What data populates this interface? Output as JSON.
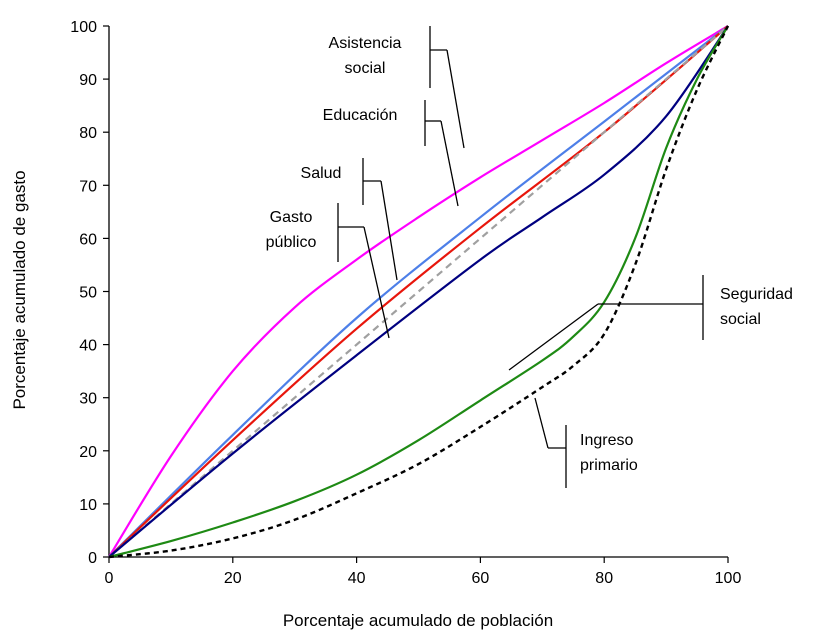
{
  "chart_data": {
    "type": "line",
    "title": "",
    "xlabel": "Porcentaje acumulado de población",
    "ylabel": "Porcentaje acumulado de gasto",
    "xlim": [
      0,
      100
    ],
    "ylim": [
      0,
      100
    ],
    "xticks": [
      0,
      20,
      40,
      60,
      80,
      100
    ],
    "yticks": [
      0,
      10,
      20,
      30,
      40,
      50,
      60,
      70,
      80,
      90,
      100
    ],
    "grid": false,
    "legend": "none",
    "series": [
      {
        "name": "Asistencia social",
        "color": "#ff00ff",
        "dash": "solid",
        "x": [
          0,
          10,
          20,
          30,
          40,
          50,
          60,
          70,
          80,
          90,
          100
        ],
        "y": [
          0,
          19,
          35,
          47,
          56,
          64,
          71.5,
          78.5,
          85.5,
          93,
          100
        ]
      },
      {
        "name": "Educación",
        "color": "#4d7fe8",
        "dash": "solid",
        "x": [
          0,
          20,
          40,
          60,
          80,
          100
        ],
        "y": [
          0,
          23,
          45,
          64,
          82,
          100
        ]
      },
      {
        "name": "Salud",
        "color": "#e8160c",
        "dash": "solid",
        "x": [
          0,
          20,
          40,
          60,
          80,
          100
        ],
        "y": [
          0,
          22,
          43,
          62,
          80,
          100
        ]
      },
      {
        "name": "",
        "color": "#a0a0a0",
        "dash": "dashed",
        "x": [
          0,
          100
        ],
        "y": [
          0,
          100
        ]
      },
      {
        "name": "Gasto público",
        "color": "#000080",
        "dash": "solid",
        "x": [
          0,
          20,
          40,
          60,
          70,
          80,
          90,
          100
        ],
        "y": [
          0,
          19.5,
          38,
          56,
          64,
          72,
          83,
          100
        ]
      },
      {
        "name": "Seguridad social",
        "color": "#1e8a14",
        "dash": "solid",
        "x": [
          0,
          10,
          20,
          30,
          40,
          50,
          60,
          70,
          75,
          80,
          85,
          90,
          95,
          100
        ],
        "y": [
          0,
          3,
          6.5,
          10.5,
          15.5,
          22,
          29.5,
          37,
          41.5,
          48,
          60,
          77,
          90,
          100
        ]
      },
      {
        "name": "Ingreso primario",
        "color": "#000000",
        "dash": "dotted",
        "x": [
          0,
          10,
          20,
          30,
          40,
          50,
          60,
          70,
          75,
          80,
          85,
          90,
          95,
          100
        ],
        "y": [
          0,
          1.2,
          3.5,
          7,
          12,
          17.5,
          24.5,
          32,
          36,
          42,
          55,
          73,
          88,
          100
        ]
      }
    ],
    "annotations": [
      {
        "id": "asistencia",
        "lines": [
          "Asistencia",
          "social"
        ]
      },
      {
        "id": "educacion",
        "lines": [
          "Educación"
        ]
      },
      {
        "id": "salud",
        "lines": [
          "Salud"
        ]
      },
      {
        "id": "gasto",
        "lines": [
          "Gasto",
          "público"
        ]
      },
      {
        "id": "seguridad",
        "lines": [
          "Seguridad",
          "social"
        ]
      },
      {
        "id": "ingreso",
        "lines": [
          "Ingreso",
          "primario"
        ]
      }
    ]
  }
}
